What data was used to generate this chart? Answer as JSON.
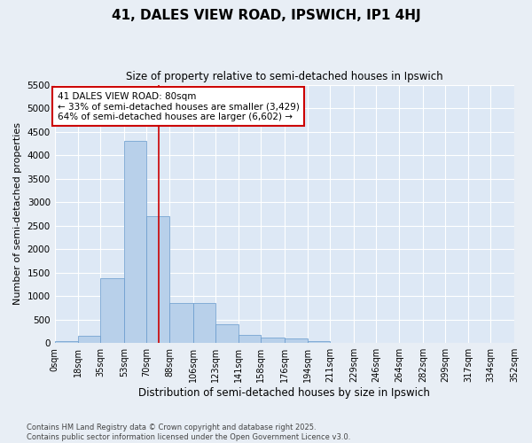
{
  "title_line1": "41, DALES VIEW ROAD, IPSWICH, IP1 4HJ",
  "title_line2": "Size of property relative to semi-detached houses in Ipswich",
  "xlabel": "Distribution of semi-detached houses by size in Ipswich",
  "ylabel": "Number of semi-detached properties",
  "property_size": 80,
  "annotation_title": "41 DALES VIEW ROAD: 80sqm",
  "annotation_smaller": "← 33% of semi-detached houses are smaller (3,429)",
  "annotation_larger": "64% of semi-detached houses are larger (6,602) →",
  "footer_line1": "Contains HM Land Registry data © Crown copyright and database right 2025.",
  "footer_line2": "Contains public sector information licensed under the Open Government Licence v3.0.",
  "bin_edges": [
    0,
    18,
    35,
    53,
    70,
    88,
    106,
    123,
    141,
    158,
    176,
    194,
    211,
    229,
    246,
    264,
    282,
    299,
    317,
    334,
    352
  ],
  "bin_counts": [
    50,
    150,
    1375,
    4300,
    2700,
    850,
    850,
    400,
    175,
    125,
    90,
    50,
    10,
    0,
    0,
    0,
    0,
    0,
    0,
    0
  ],
  "bar_color": "#b8d0ea",
  "bar_edge_color": "#6699cc",
  "red_line_color": "#cc0000",
  "annotation_box_color": "#cc0000",
  "plot_bg_color": "#dde8f5",
  "fig_bg_color": "#e8eef5",
  "grid_color": "#ffffff",
  "ylim": [
    0,
    5500
  ],
  "yticks": [
    0,
    500,
    1000,
    1500,
    2000,
    2500,
    3000,
    3500,
    4000,
    4500,
    5000,
    5500
  ]
}
